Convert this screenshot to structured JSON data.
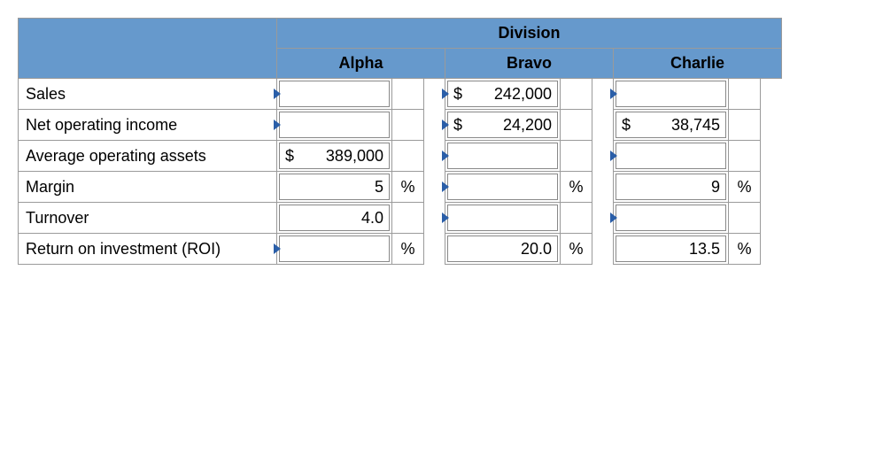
{
  "header": {
    "title": "Division",
    "columns": [
      "Alpha",
      "Bravo",
      "Charlie"
    ]
  },
  "rows": {
    "sales": {
      "label": "Sales",
      "alpha": {
        "symbol": "",
        "value": "",
        "unit": "",
        "caret": true
      },
      "bravo": {
        "symbol": "$",
        "value": "242,000",
        "unit": "",
        "caret": true
      },
      "charlie": {
        "symbol": "",
        "value": "",
        "unit": "",
        "caret": true
      }
    },
    "noi": {
      "label": "Net operating income",
      "alpha": {
        "symbol": "",
        "value": "",
        "unit": "",
        "caret": true
      },
      "bravo": {
        "symbol": "$",
        "value": "24,200",
        "unit": "",
        "caret": true
      },
      "charlie": {
        "symbol": "$",
        "value": "38,745",
        "unit": "",
        "caret": false
      }
    },
    "assets": {
      "label": "Average operating assets",
      "alpha": {
        "symbol": "$",
        "value": "389,000",
        "unit": "",
        "caret": false
      },
      "bravo": {
        "symbol": "",
        "value": "",
        "unit": "",
        "caret": true
      },
      "charlie": {
        "symbol": "",
        "value": "",
        "unit": "",
        "caret": true
      }
    },
    "margin": {
      "label": "Margin",
      "alpha": {
        "symbol": "",
        "value": "5",
        "unit": "%",
        "caret": false
      },
      "bravo": {
        "symbol": "",
        "value": "",
        "unit": "%",
        "caret": true
      },
      "charlie": {
        "symbol": "",
        "value": "9",
        "unit": "%",
        "caret": false
      }
    },
    "turnover": {
      "label": "Turnover",
      "alpha": {
        "symbol": "",
        "value": "4.0",
        "unit": "",
        "caret": false
      },
      "bravo": {
        "symbol": "",
        "value": "",
        "unit": "",
        "caret": true
      },
      "charlie": {
        "symbol": "",
        "value": "",
        "unit": "",
        "caret": true
      }
    },
    "roi": {
      "label": "Return on investment (ROI)",
      "alpha": {
        "symbol": "",
        "value": "",
        "unit": "%",
        "caret": true
      },
      "bravo": {
        "symbol": "",
        "value": "20.0",
        "unit": "%",
        "caret": false
      },
      "charlie": {
        "symbol": "",
        "value": "13.5",
        "unit": "%",
        "caret": false
      }
    }
  },
  "style": {
    "header_bg": "#6699cc",
    "border_color": "#9a9a9a",
    "caret_color": "#2a5ea8",
    "font_family": "Arial, sans-serif",
    "font_size_pt": 14
  }
}
